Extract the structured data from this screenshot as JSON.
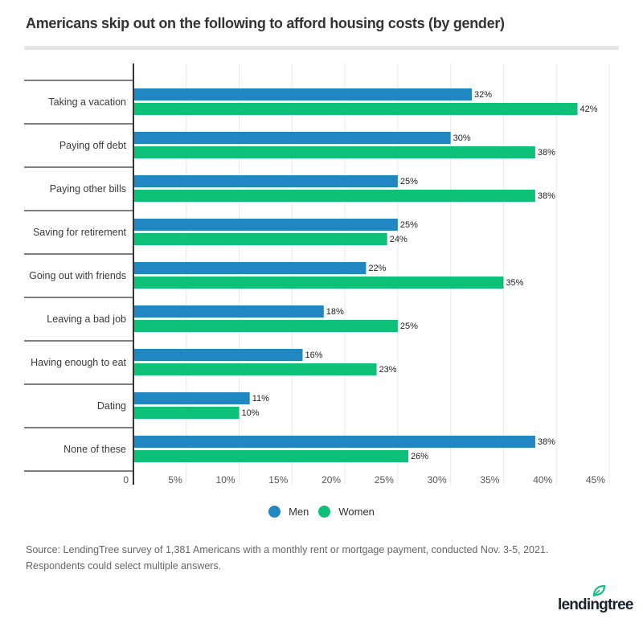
{
  "title": "Americans skip out on the following to afford housing costs (by gender)",
  "colors": {
    "men": "#2187c2",
    "women": "#0dc278",
    "grid": "#e8e8e8",
    "axis": "#333333"
  },
  "legend": [
    {
      "label": "Men",
      "color": "#2187c2"
    },
    {
      "label": "Women",
      "color": "#0dc278"
    }
  ],
  "source": {
    "line1": "Source: LendingTree survey of 1,381 Americans with a monthly rent or mortgage payment, conducted Nov. 3-5, 2021.",
    "line2": "Respondents could select multiple answers."
  },
  "brand": {
    "name": "lendingtree"
  },
  "chart_data": {
    "type": "bar",
    "orientation": "horizontal",
    "title": "Americans skip out on the following to afford housing costs (by gender)",
    "xlabel": "",
    "ylabel": "",
    "xlim": [
      0,
      45
    ],
    "grid": true,
    "legend_position": "bottom-center",
    "x_ticks": [
      0,
      5,
      10,
      15,
      20,
      25,
      30,
      35,
      40,
      45
    ],
    "x_tick_labels": [
      "0",
      "5%",
      "10%",
      "15%",
      "20%",
      "25%",
      "30%",
      "35%",
      "40%",
      "45%"
    ],
    "categories": [
      "Taking a vacation",
      "Paying off debt",
      "Paying other bills",
      "Saving for retirement",
      "Going out with friends",
      "Leaving a bad job",
      "Having enough to eat",
      "Dating",
      "None of these"
    ],
    "series": [
      {
        "name": "Men",
        "values": [
          32,
          30,
          25,
          25,
          22,
          18,
          16,
          11,
          38
        ],
        "labels": [
          "32%",
          "30%",
          "25%",
          "25%",
          "22%",
          "18%",
          "16%",
          "11%",
          "38%"
        ]
      },
      {
        "name": "Women",
        "values": [
          42,
          38,
          38,
          24,
          35,
          25,
          23,
          10,
          26
        ],
        "labels": [
          "42%",
          "38%",
          "38%",
          "24%",
          "35%",
          "25%",
          "23%",
          "10%",
          "26%"
        ]
      }
    ]
  }
}
